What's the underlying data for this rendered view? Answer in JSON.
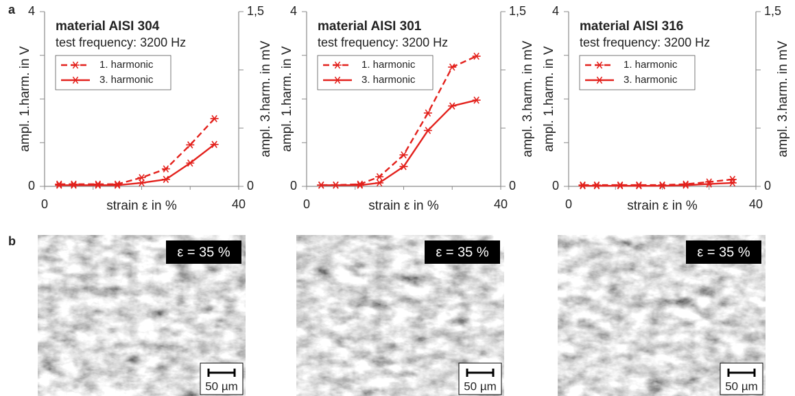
{
  "panel_labels": [
    "a",
    "b"
  ],
  "chart_data": [
    {
      "type": "line",
      "title": "material AISI 304",
      "subtitle": "test frequency: 3200 Hz",
      "x_label": "strain ε in %",
      "y_label": "ampl. 1.harm. in V",
      "y2_label": "ampl. 3.harm. in mV",
      "x": [
        3,
        6,
        11,
        15,
        20,
        25,
        30,
        35
      ],
      "xlim": [
        0,
        40
      ],
      "xticks": [
        0,
        {
          "value": 10,
          "label": null
        },
        {
          "value": 20,
          "label": null
        },
        {
          "value": 30,
          "label": null
        },
        40
      ],
      "ylim": [
        0,
        4
      ],
      "yticks": [
        0,
        {
          "value": 1,
          "label": null
        },
        {
          "value": 2,
          "label": null
        },
        {
          "value": 3,
          "label": null
        },
        4
      ],
      "y2lim": [
        0,
        1.5
      ],
      "y2ticks": [
        0,
        {
          "value": 0.5,
          "label": null
        },
        {
          "value": 1,
          "label": null
        },
        {
          "value": 1.5,
          "label": "1,5"
        }
      ],
      "series": [
        {
          "name": "1. harmonic",
          "color": "#e3211c",
          "line_style": "dashed",
          "values": [
            0.05,
            0.05,
            0.05,
            0.05,
            0.2,
            0.4,
            0.95,
            1.55
          ]
        },
        {
          "name": "3. harmonic",
          "color": "#e3211c",
          "line_style": "solid",
          "axis": "y2",
          "values": [
            0.01,
            0.01,
            0.01,
            0.01,
            0.03,
            0.06,
            0.2,
            0.36
          ]
        }
      ]
    },
    {
      "type": "line",
      "title": "material AISI 301",
      "subtitle": "test frequency: 3200 Hz",
      "x_label": "strain ε in %",
      "y_label": "ampl. 1.harm. in V",
      "y2_label": "ampl. 3.harm. in mV",
      "x": [
        3,
        6,
        11,
        15,
        20,
        25,
        30,
        35
      ],
      "xlim": [
        0,
        40
      ],
      "xticks": [
        0,
        {
          "value": 10,
          "label": null
        },
        {
          "value": 20,
          "label": null
        },
        {
          "value": 30,
          "label": null
        },
        40
      ],
      "ylim": [
        0,
        4
      ],
      "yticks": [
        0,
        {
          "value": 1,
          "label": null
        },
        {
          "value": 2,
          "label": null
        },
        {
          "value": 3,
          "label": null
        },
        4
      ],
      "y2lim": [
        0,
        1.5
      ],
      "y2ticks": [
        0,
        {
          "value": 0.5,
          "label": null
        },
        {
          "value": 1,
          "label": null
        },
        {
          "value": 1.5,
          "label": "1,5"
        }
      ],
      "series": [
        {
          "name": "1. harmonic",
          "color": "#e3211c",
          "line_style": "dashed",
          "values": [
            0.03,
            0.03,
            0.05,
            0.22,
            0.72,
            1.68,
            2.73,
            2.98
          ]
        },
        {
          "name": "3. harmonic",
          "color": "#e3211c",
          "line_style": "solid",
          "axis": "y2",
          "values": [
            0.01,
            0.01,
            0.01,
            0.03,
            0.17,
            0.48,
            0.69,
            0.74
          ]
        }
      ]
    },
    {
      "type": "line",
      "title": "material AISI 316",
      "subtitle": "test frequency: 3200 Hz",
      "x_label": "strain ε in %",
      "y_label": "ampl. 1.harm. in V",
      "y2_label": "ampl. 3.harm. in mV",
      "x": [
        3,
        6,
        11,
        15,
        20,
        25,
        30,
        35
      ],
      "xlim": [
        0,
        40
      ],
      "xticks": [
        0,
        {
          "value": 10,
          "label": null
        },
        {
          "value": 20,
          "label": null
        },
        {
          "value": 30,
          "label": null
        },
        40
      ],
      "ylim": [
        0,
        4
      ],
      "yticks": [
        0,
        {
          "value": 1,
          "label": null
        },
        {
          "value": 2,
          "label": null
        },
        {
          "value": 3,
          "label": null
        },
        4
      ],
      "y2lim": [
        0,
        1.5
      ],
      "y2ticks": [
        0,
        {
          "value": 0.5,
          "label": null
        },
        {
          "value": 1,
          "label": null
        },
        {
          "value": 1.5,
          "label": "1,5"
        }
      ],
      "series": [
        {
          "name": "1. harmonic",
          "color": "#e3211c",
          "line_style": "dashed",
          "values": [
            0.03,
            0.03,
            0.03,
            0.03,
            0.03,
            0.05,
            0.1,
            0.16
          ]
        },
        {
          "name": "3. harmonic",
          "color": "#e3211c",
          "line_style": "solid",
          "axis": "y2",
          "values": [
            0.005,
            0.005,
            0.005,
            0.005,
            0.005,
            0.01,
            0.02,
            0.03
          ]
        }
      ]
    }
  ],
  "micrographs": [
    {
      "strain_label": "ε = 35 %",
      "scale_label": "50 µm"
    },
    {
      "strain_label": "ε = 35 %",
      "scale_label": "50 µm"
    },
    {
      "strain_label": "ε = 35 %",
      "scale_label": "50 µm"
    }
  ]
}
